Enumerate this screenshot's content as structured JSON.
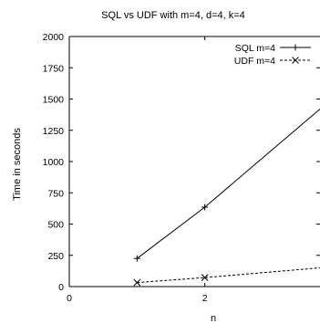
{
  "chart_data": {
    "type": "line",
    "title": "SQL vs UDF with m=4, d=4, k=4",
    "xlabel": "n",
    "ylabel": "Time in seconds",
    "xlim": [
      0,
      3.7
    ],
    "ylim": [
      0,
      2000
    ],
    "x_ticks": [
      "0",
      "2"
    ],
    "x_tick_values": [
      0,
      2
    ],
    "y_ticks": [
      "0",
      "250",
      "500",
      "750",
      "1000",
      "1250",
      "1500",
      "1750",
      "2000"
    ],
    "y_tick_values": [
      0,
      250,
      500,
      750,
      1000,
      1250,
      1500,
      1750,
      2000
    ],
    "grid": false,
    "legend_position": "top-right",
    "series": [
      {
        "name": "SQL m=4",
        "marker": "plus",
        "line_style": "solid",
        "color": "#000000",
        "x": [
          1,
          2,
          3.7
        ],
        "y": [
          225,
          635,
          1420
        ]
      },
      {
        "name": "UDF m=4",
        "marker": "cross",
        "line_style": "dashed",
        "color": "#000000",
        "x": [
          1,
          2,
          3.7
        ],
        "y": [
          32,
          72,
          150
        ]
      }
    ]
  }
}
